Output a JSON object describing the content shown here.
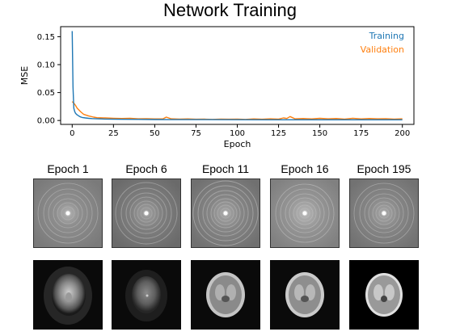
{
  "title": "Network Training",
  "chart_data": {
    "type": "line",
    "xlabel": "Epoch",
    "ylabel": "MSE",
    "xlim": [
      -7,
      207
    ],
    "ylim": [
      -0.007,
      0.168
    ],
    "xticks": [
      0,
      25,
      50,
      75,
      100,
      125,
      150,
      175,
      200
    ],
    "yticks": [
      0.0,
      0.05,
      0.1,
      0.15
    ],
    "ytick_labels": [
      "0.00",
      "0.05",
      "0.10",
      "0.15"
    ],
    "grid": false,
    "legend": "top-right",
    "series": [
      {
        "name": "Training",
        "color": "#1f77b4",
        "x": [
          0,
          0.5,
          1,
          1.5,
          2,
          3,
          4,
          5,
          6,
          8,
          10,
          12,
          15,
          20,
          25,
          30,
          40,
          50,
          60,
          80,
          100,
          120,
          140,
          160,
          180,
          200
        ],
        "y": [
          0.16,
          0.06,
          0.022,
          0.016,
          0.013,
          0.01,
          0.008,
          0.0065,
          0.0055,
          0.0045,
          0.0038,
          0.0034,
          0.003,
          0.0026,
          0.0023,
          0.0021,
          0.0019,
          0.0017,
          0.0016,
          0.0015,
          0.0014,
          0.0013,
          0.0013,
          0.0012,
          0.0012,
          0.0012
        ]
      },
      {
        "name": "Validation",
        "color": "#ff7f0e",
        "x": [
          0,
          1,
          2,
          3,
          5,
          7,
          10,
          13,
          15,
          20,
          25,
          30,
          35,
          40,
          45,
          50,
          55,
          57,
          60,
          65,
          70,
          75,
          80,
          85,
          90,
          95,
          100,
          105,
          110,
          115,
          120,
          125,
          128,
          130,
          132,
          135,
          140,
          145,
          150,
          155,
          160,
          165,
          170,
          175,
          180,
          185,
          190,
          195,
          200
        ],
        "y": [
          0.034,
          0.031,
          0.027,
          0.022,
          0.016,
          0.011,
          0.008,
          0.006,
          0.005,
          0.0045,
          0.004,
          0.0035,
          0.0038,
          0.003,
          0.0032,
          0.0028,
          0.003,
          0.006,
          0.003,
          0.0025,
          0.0028,
          0.0022,
          0.0024,
          0.002,
          0.0025,
          0.0022,
          0.0024,
          0.002,
          0.0028,
          0.0022,
          0.003,
          0.0026,
          0.0045,
          0.0035,
          0.007,
          0.003,
          0.0035,
          0.0028,
          0.0038,
          0.003,
          0.0035,
          0.0025,
          0.004,
          0.0028,
          0.0035,
          0.003,
          0.0032,
          0.0025,
          0.003
        ]
      }
    ]
  },
  "epochs": [
    {
      "label": "Epoch 1"
    },
    {
      "label": "Epoch 6"
    },
    {
      "label": "Epoch 11"
    },
    {
      "label": "Epoch 16"
    },
    {
      "label": "Epoch 195"
    }
  ]
}
